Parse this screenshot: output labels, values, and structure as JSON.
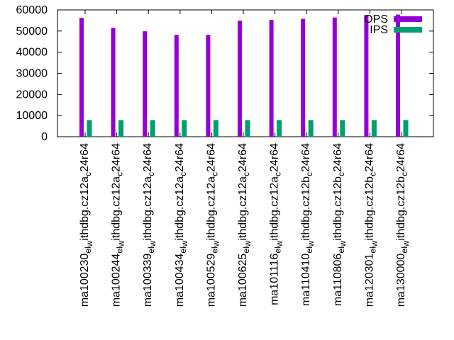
{
  "chart_data": {
    "type": "bar",
    "title": "",
    "xlabel": "",
    "ylabel": "",
    "ylim": [
      0,
      60000
    ],
    "yticks": [
      0,
      10000,
      20000,
      30000,
      40000,
      50000,
      60000
    ],
    "ytick_labels": [
      "0",
      "10000",
      "20000",
      "30000",
      "40000",
      "50000",
      "60000"
    ],
    "grid": false,
    "legend_position": "top-right",
    "categories": [
      {
        "pre": "ma100230",
        "sub1": "el",
        "w": "w",
        "mid": "ithdbg.cz12a",
        "c": "c",
        "post": "24r64"
      },
      {
        "pre": "ma100244",
        "sub1": "el",
        "w": "w",
        "mid": "ithdbg.cz12a",
        "c": "c",
        "post": "24r64"
      },
      {
        "pre": "ma100339",
        "sub1": "el",
        "w": "w",
        "mid": "ithdbg.cz12a",
        "c": "c",
        "post": "24r64"
      },
      {
        "pre": "ma100434",
        "sub1": "el",
        "w": "w",
        "mid": "ithdbg.cz12a",
        "c": "c",
        "post": "24r64"
      },
      {
        "pre": "ma100529",
        "sub1": "el",
        "w": "w",
        "mid": "ithdbg.cz12a",
        "c": "c",
        "post": "24r64"
      },
      {
        "pre": "ma100625",
        "sub1": "el",
        "w": "w",
        "mid": "ithdbg.cz12a",
        "c": "c",
        "post": "24r64"
      },
      {
        "pre": "ma101116",
        "sub1": "el",
        "w": "w",
        "mid": "ithdbg.cz12a",
        "c": "c",
        "post": "24r64"
      },
      {
        "pre": "ma110410",
        "sub1": "el",
        "w": "w",
        "mid": "ithdbg.cz12b",
        "c": "c",
        "post": "24r64"
      },
      {
        "pre": "ma110806",
        "sub1": "el",
        "w": "w",
        "mid": "ithdbg.cz12b",
        "c": "c",
        "post": "24r64"
      },
      {
        "pre": "ma120301",
        "sub1": "el",
        "w": "w",
        "mid": "ithdbg.cz12b",
        "c": "c",
        "post": "24r64"
      },
      {
        "pre": "ma130000",
        "sub1": "el",
        "w": "w",
        "mid": "ithdbg.cz12b",
        "c": "c",
        "post": "24r64"
      }
    ],
    "series": [
      {
        "name": "OPS",
        "color": "#9400d3",
        "values": [
          56200,
          51500,
          49900,
          48200,
          48200,
          54900,
          55300,
          55800,
          56400,
          57600,
          57800
        ]
      },
      {
        "name": "IPS",
        "color": "#009e73",
        "values": [
          7900,
          7900,
          7900,
          7900,
          7900,
          7900,
          7900,
          7900,
          7900,
          7900,
          7900
        ]
      }
    ]
  }
}
